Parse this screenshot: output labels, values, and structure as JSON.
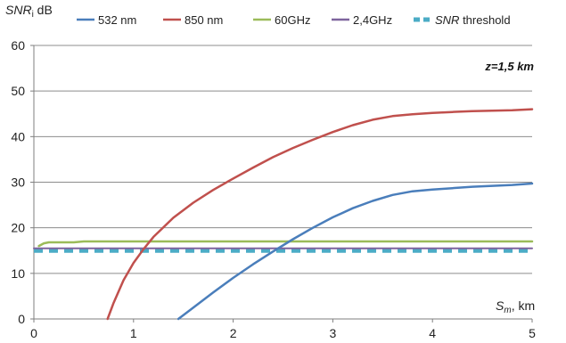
{
  "chart_data": {
    "type": "line",
    "ylabel_main": "SNR",
    "ylabel_sub": "i",
    "ylabel_unit": " dB",
    "xlabel_main": "S",
    "xlabel_sub": "m",
    "xlabel_unit": ", km",
    "annotation": "z=1,5 km",
    "xlim": [
      0,
      5
    ],
    "ylim": [
      0,
      60
    ],
    "x_ticks": [
      "0",
      "1",
      "2",
      "3",
      "4",
      "5"
    ],
    "y_ticks": [
      "0",
      "10",
      "20",
      "30",
      "40",
      "50",
      "60"
    ],
    "grid": true,
    "legend_position": "top",
    "series": [
      {
        "name": "532 nm",
        "color": "#4a7ebb",
        "x": [
          1.45,
          1.6,
          1.8,
          2.0,
          2.2,
          2.4,
          2.6,
          2.8,
          3.0,
          3.2,
          3.4,
          3.6,
          3.8,
          4.0,
          4.2,
          4.4,
          4.6,
          4.8,
          5.0
        ],
        "y": [
          0,
          2.5,
          5.8,
          9.0,
          12.0,
          14.8,
          17.5,
          20.0,
          22.3,
          24.3,
          25.9,
          27.2,
          28.0,
          28.4,
          28.7,
          29.0,
          29.2,
          29.4,
          29.7
        ]
      },
      {
        "name": "850 nm",
        "color": "#c0504d",
        "x": [
          0.74,
          0.8,
          0.9,
          1.0,
          1.1,
          1.2,
          1.4,
          1.6,
          1.8,
          2.0,
          2.2,
          2.4,
          2.6,
          2.8,
          3.0,
          3.2,
          3.4,
          3.6,
          3.8,
          4.0,
          4.2,
          4.4,
          4.6,
          4.8,
          5.0
        ],
        "y": [
          0,
          3.5,
          8.5,
          12.3,
          15.3,
          18.0,
          22.2,
          25.5,
          28.3,
          30.8,
          33.2,
          35.5,
          37.5,
          39.3,
          41.0,
          42.5,
          43.7,
          44.5,
          44.9,
          45.2,
          45.4,
          45.6,
          45.7,
          45.8,
          46.0
        ]
      },
      {
        "name": "60GHz",
        "color": "#9bbb59",
        "x": [
          0.05,
          0.1,
          0.15,
          0.2,
          0.4,
          0.5,
          1.0,
          2.0,
          3.0,
          4.0,
          5.0
        ],
        "y": [
          16.0,
          16.6,
          16.8,
          16.8,
          16.8,
          17.0,
          17.0,
          17.0,
          17.0,
          17.0,
          17.0
        ]
      },
      {
        "name": "2,4GHz",
        "color": "#7e649e",
        "x": [
          0.0,
          5.0
        ],
        "y": [
          15.5,
          15.5
        ]
      },
      {
        "name": "SNR threshold",
        "color": "#4bacc6",
        "x": [
          0.0,
          5.0
        ],
        "y": [
          15.0,
          15.0
        ]
      }
    ],
    "legend": [
      {
        "label": "532 nm",
        "italic_prefix": "",
        "color": "#4a7ebb",
        "dashed": false
      },
      {
        "label": "850 nm",
        "italic_prefix": "",
        "color": "#c0504d",
        "dashed": false
      },
      {
        "label": "60GHz",
        "italic_prefix": "",
        "color": "#9bbb59",
        "dashed": false
      },
      {
        "label": "2,4GHz",
        "italic_prefix": "",
        "color": "#7e649e",
        "dashed": false
      },
      {
        "label": " threshold",
        "italic_prefix": "SNR",
        "color": "#4bacc6",
        "dashed": true
      }
    ]
  }
}
